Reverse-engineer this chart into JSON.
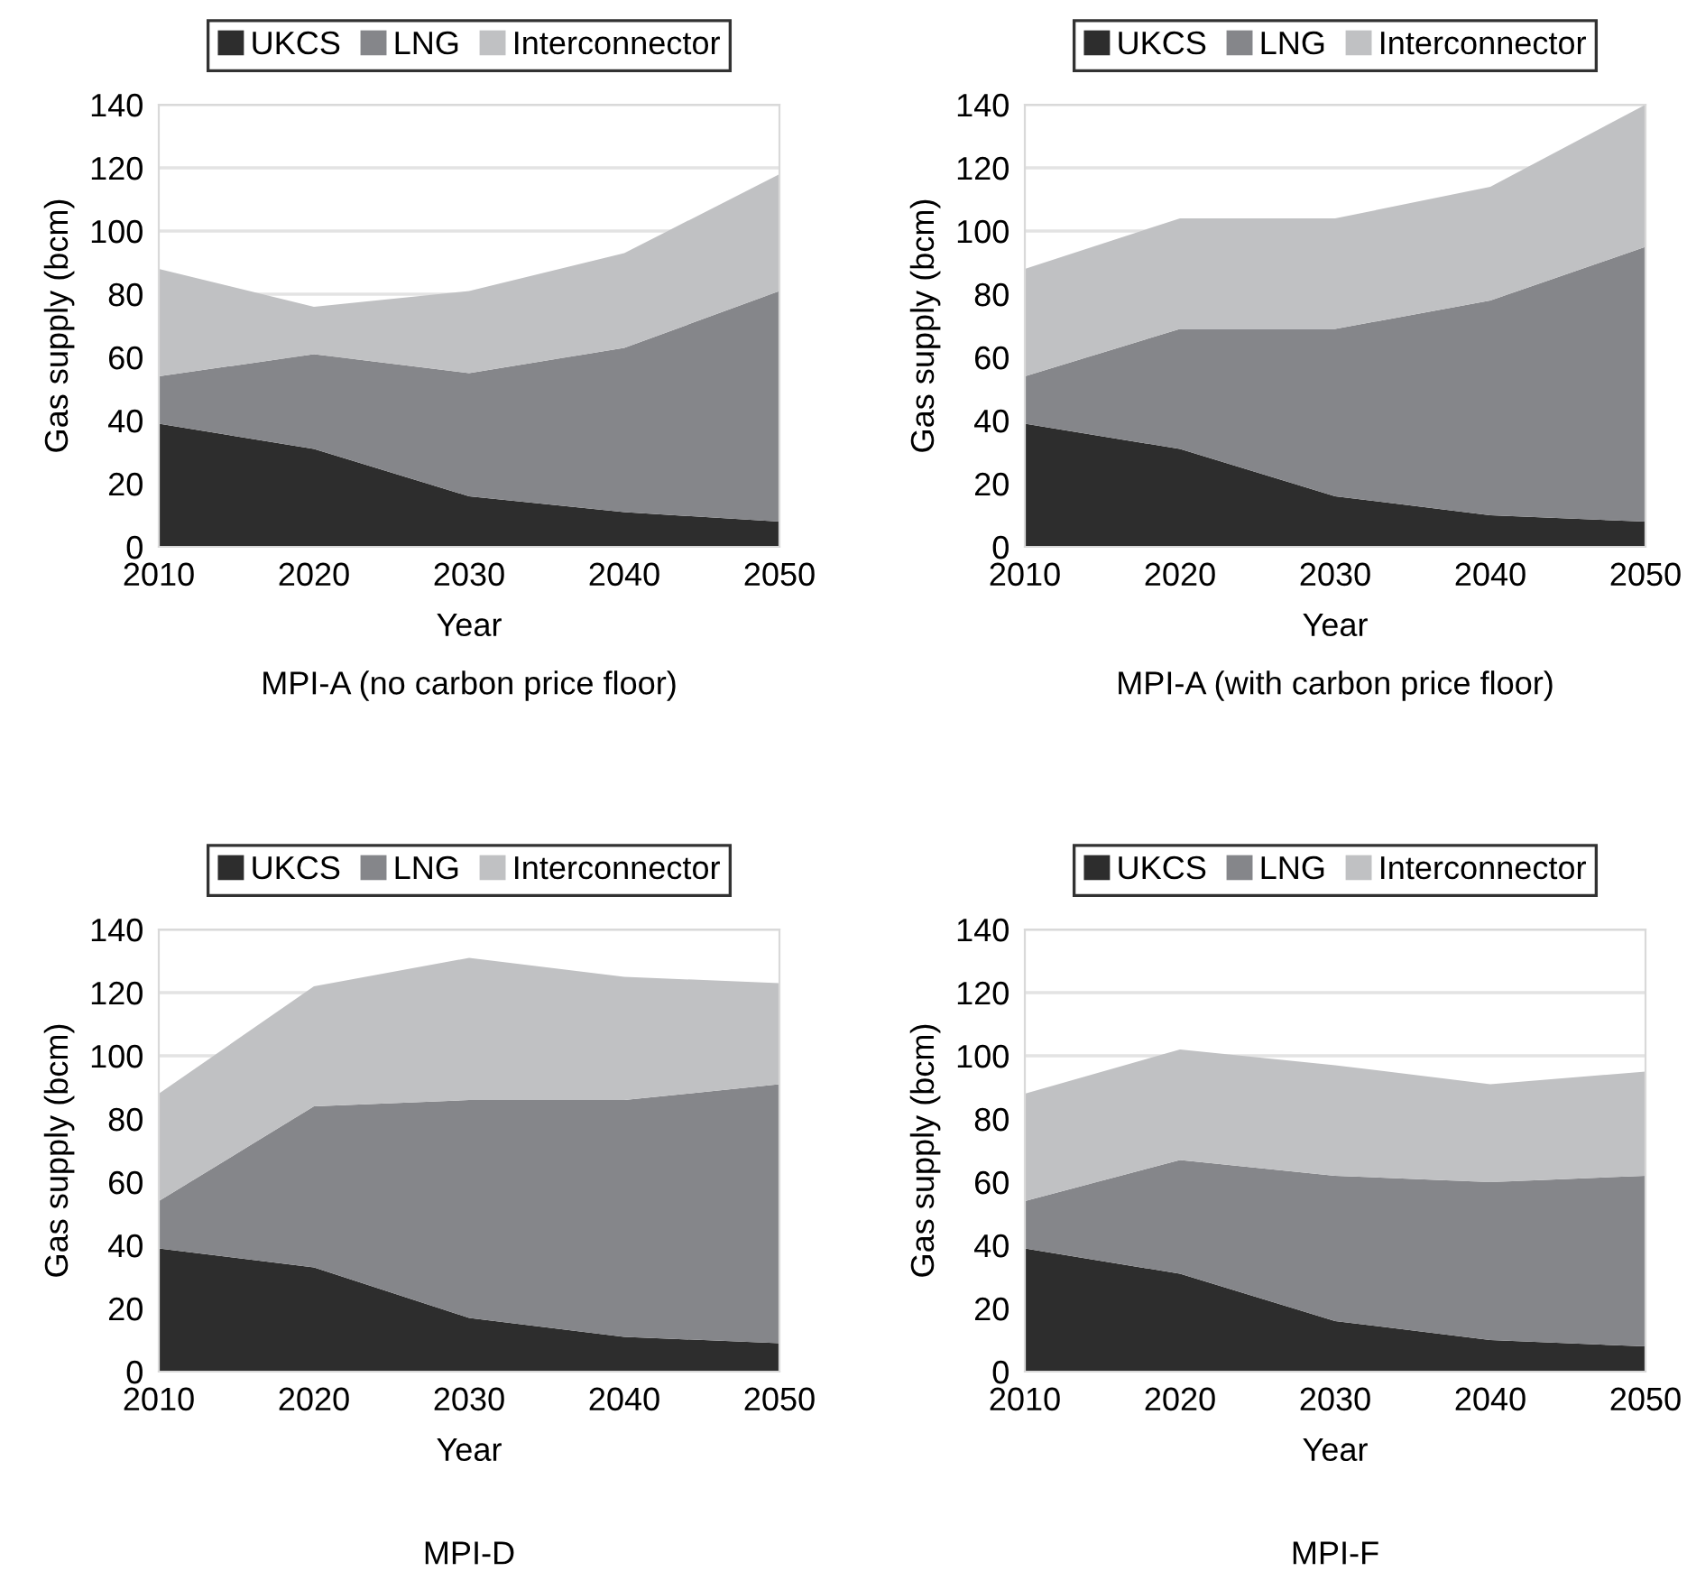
{
  "chart_data": [
    {
      "type": "area",
      "stacked": true,
      "title": "MPI-A (no carbon price floor)",
      "xlabel": "Year",
      "ylabel": "Gas supply (bcm)",
      "x": [
        2010,
        2020,
        2030,
        2040,
        2050
      ],
      "xlim": [
        2010,
        2050
      ],
      "xticks": [
        2010,
        2020,
        2030,
        2040,
        2050
      ],
      "ylim": [
        0,
        140
      ],
      "yticks": [
        0,
        20,
        40,
        60,
        80,
        100,
        120,
        140
      ],
      "grid": "y",
      "legend": "top",
      "series": [
        {
          "name": "UKCS",
          "color": "#2d2d2d",
          "values": [
            39,
            31,
            16,
            11,
            8
          ]
        },
        {
          "name": "LNG",
          "color": "#85868a",
          "values": [
            15,
            30,
            39,
            52,
            73
          ]
        },
        {
          "name": "Interconnector",
          "color": "#c0c1c3",
          "values": [
            34,
            15,
            26,
            30,
            37
          ]
        }
      ]
    },
    {
      "type": "area",
      "stacked": true,
      "title": "MPI-A (with carbon price floor)",
      "xlabel": "Year",
      "ylabel": "Gas supply (bcm)",
      "x": [
        2010,
        2020,
        2030,
        2040,
        2050
      ],
      "xlim": [
        2010,
        2050
      ],
      "xticks": [
        2010,
        2020,
        2030,
        2040,
        2050
      ],
      "ylim": [
        0,
        140
      ],
      "yticks": [
        0,
        20,
        40,
        60,
        80,
        100,
        120,
        140
      ],
      "grid": "y",
      "legend": "top",
      "series": [
        {
          "name": "UKCS",
          "color": "#2d2d2d",
          "values": [
            39,
            31,
            16,
            10,
            8
          ]
        },
        {
          "name": "LNG",
          "color": "#85868a",
          "values": [
            15,
            38,
            53,
            68,
            87
          ]
        },
        {
          "name": "Interconnector",
          "color": "#c0c1c3",
          "values": [
            34,
            35,
            35,
            36,
            45
          ]
        }
      ]
    },
    {
      "type": "area",
      "stacked": true,
      "title": "MPI-D",
      "xlabel": "Year",
      "ylabel": "Gas supply (bcm)",
      "x": [
        2010,
        2020,
        2030,
        2040,
        2050
      ],
      "xlim": [
        2010,
        2050
      ],
      "xticks": [
        2010,
        2020,
        2030,
        2040,
        2050
      ],
      "ylim": [
        0,
        140
      ],
      "yticks": [
        0,
        20,
        40,
        60,
        80,
        100,
        120,
        140
      ],
      "grid": "y",
      "legend": "top",
      "series": [
        {
          "name": "UKCS",
          "color": "#2d2d2d",
          "values": [
            39,
            33,
            17,
            11,
            9
          ]
        },
        {
          "name": "LNG",
          "color": "#85868a",
          "values": [
            15,
            51,
            69,
            75,
            82
          ]
        },
        {
          "name": "Interconnector",
          "color": "#c0c1c3",
          "values": [
            34,
            38,
            45,
            39,
            32
          ]
        }
      ]
    },
    {
      "type": "area",
      "stacked": true,
      "title": "MPI-F",
      "xlabel": "Year",
      "ylabel": "Gas supply (bcm)",
      "x": [
        2010,
        2020,
        2030,
        2040,
        2050
      ],
      "xlim": [
        2010,
        2050
      ],
      "xticks": [
        2010,
        2020,
        2030,
        2040,
        2050
      ],
      "ylim": [
        0,
        140
      ],
      "yticks": [
        0,
        20,
        40,
        60,
        80,
        100,
        120,
        140
      ],
      "grid": "y",
      "legend": "top",
      "series": [
        {
          "name": "UKCS",
          "color": "#2d2d2d",
          "values": [
            39,
            31,
            16,
            10,
            8
          ]
        },
        {
          "name": "LNG",
          "color": "#85868a",
          "values": [
            15,
            36,
            46,
            50,
            54
          ]
        },
        {
          "name": "Interconnector",
          "color": "#c0c1c3",
          "values": [
            34,
            35,
            35,
            31,
            33
          ]
        }
      ]
    }
  ]
}
